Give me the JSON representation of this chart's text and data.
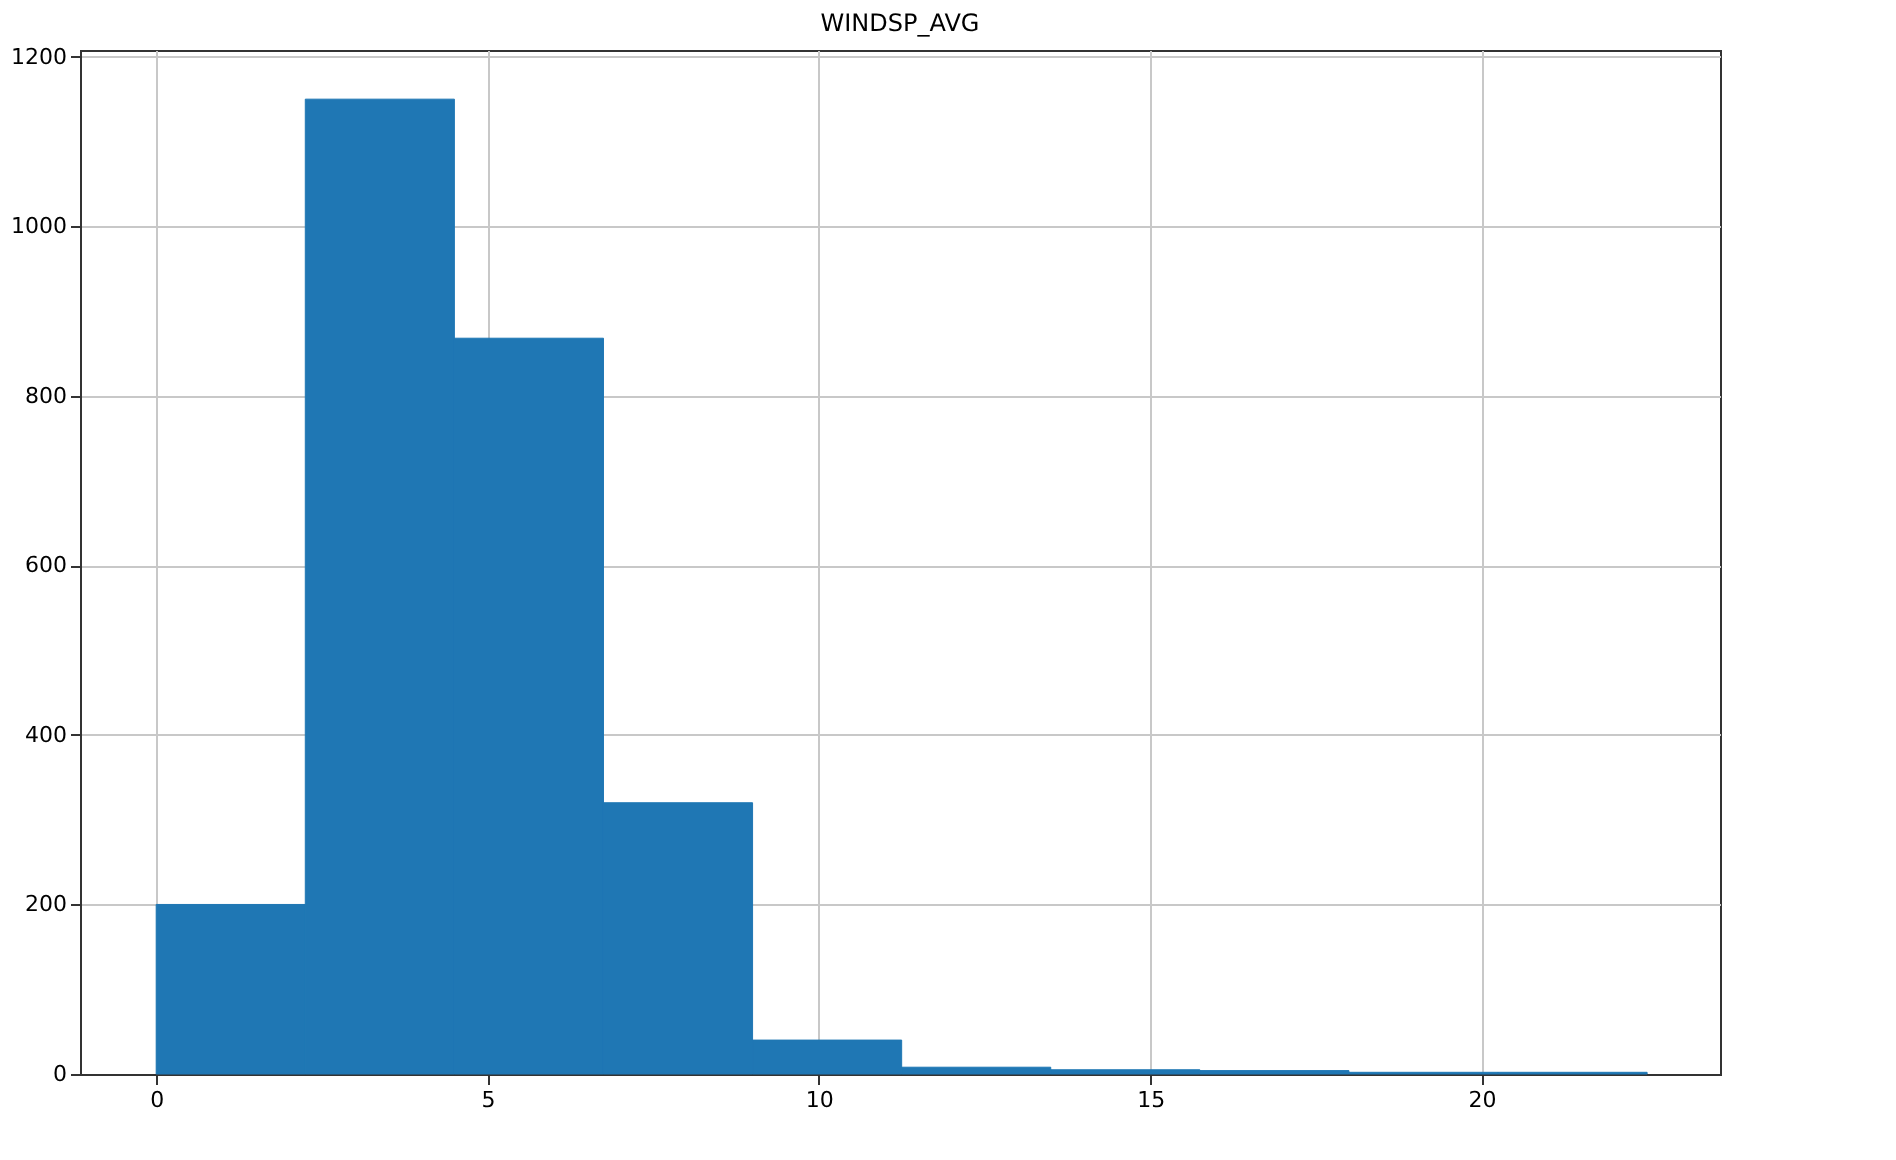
{
  "chart_data": {
    "type": "histogram",
    "title": "WINDSP_AVG",
    "bins": [
      0,
      2.25,
      4.5,
      6.75,
      9,
      11.25,
      13.5,
      15.75,
      18,
      20.25,
      22.5
    ],
    "values": [
      200,
      1150,
      868,
      320,
      40,
      8,
      5,
      4,
      2,
      2
    ],
    "color": "#1f77b4",
    "xlim": [
      -1.15,
      23.6
    ],
    "xticks": [
      0,
      5,
      10,
      15,
      20
    ],
    "ylim": [
      0,
      1208
    ],
    "yticks": [
      0,
      200,
      400,
      600,
      800,
      1000,
      1200
    ],
    "grid": true
  }
}
